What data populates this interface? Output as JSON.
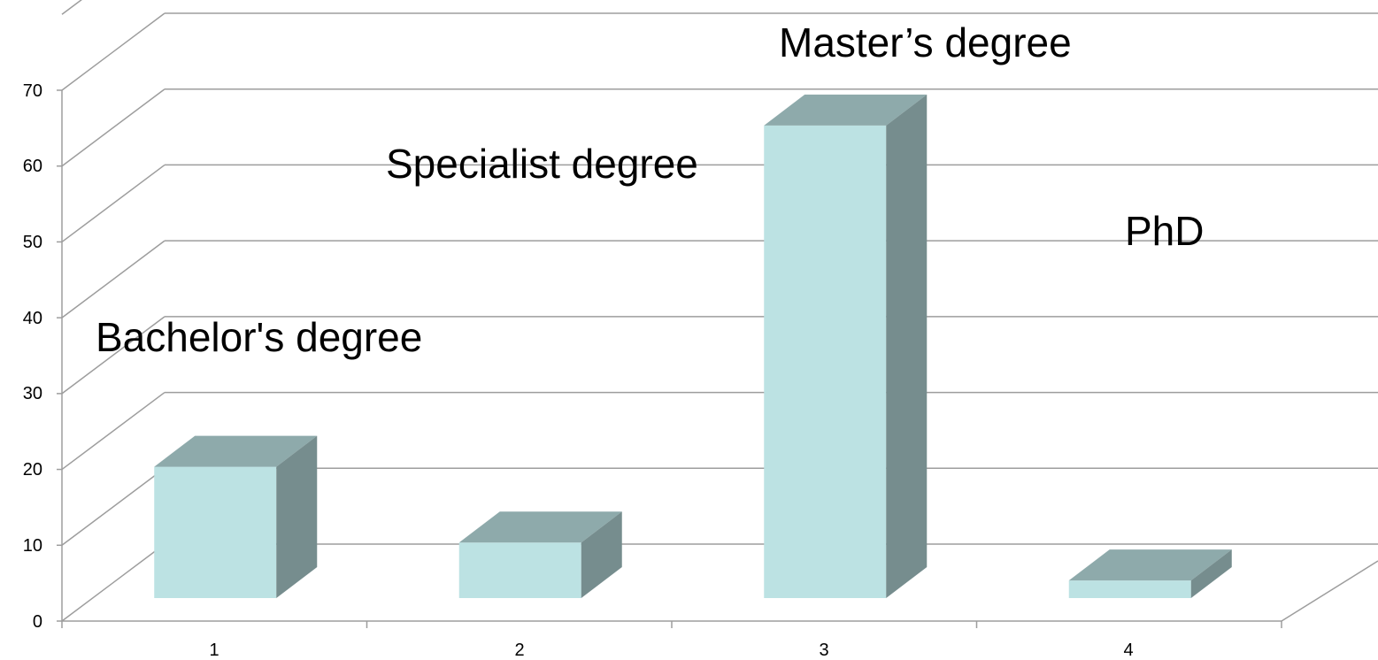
{
  "chart_data": {
    "type": "bar",
    "style": "3d-column",
    "categories": [
      "1",
      "2",
      "3",
      "4"
    ],
    "values": [
      20,
      10,
      65,
      5
    ],
    "ylim": [
      0,
      70
    ],
    "yticks": [
      "0",
      "10",
      "20",
      "30",
      "40",
      "50",
      "60",
      "70"
    ],
    "grid": true,
    "annotations": [
      "Bachelor's  degree",
      "Specialist degree",
      "Master’s degree",
      "PhD"
    ],
    "colors": {
      "bar_front": "#bce2e3",
      "bar_top": "#8eaaab",
      "bar_side": "#768d8e",
      "grid": "#9d9d9d"
    }
  }
}
